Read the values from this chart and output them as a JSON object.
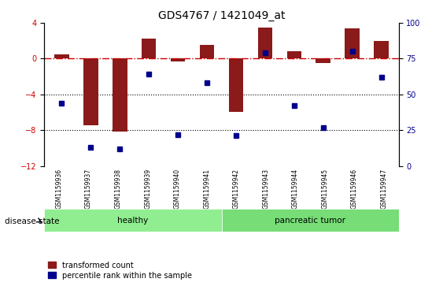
{
  "title": "GDS4767 / 1421049_at",
  "samples": [
    "GSM1159936",
    "GSM1159937",
    "GSM1159938",
    "GSM1159939",
    "GSM1159940",
    "GSM1159941",
    "GSM1159942",
    "GSM1159943",
    "GSM1159944",
    "GSM1159945",
    "GSM1159946",
    "GSM1159947"
  ],
  "transformed_count": [
    0.5,
    -7.5,
    -8.2,
    2.2,
    -0.3,
    1.5,
    -6.0,
    3.5,
    0.8,
    -0.5,
    3.4,
    2.0
  ],
  "percentile_rank": [
    44,
    13,
    12,
    64,
    22,
    58,
    21,
    79,
    42,
    27,
    80,
    62
  ],
  "groups": [
    {
      "label": "healthy",
      "start": 0,
      "end": 6,
      "color": "#90EE90"
    },
    {
      "label": "pancreatic tumor",
      "start": 6,
      "end": 12,
      "color": "#90EE90"
    }
  ],
  "group_boundary": 6,
  "bar_color": "#8B1A1A",
  "dot_color": "#00008B",
  "zero_line_color": "#CC0000",
  "grid_line_color": "#000000",
  "ylim_left": [
    -12,
    4
  ],
  "ylim_right": [
    0,
    100
  ],
  "yticks_left": [
    4,
    0,
    -4,
    -8,
    -12
  ],
  "yticks_right": [
    100,
    75,
    50,
    25,
    0
  ],
  "hlines": [
    0,
    -4,
    -8
  ],
  "disease_state_label": "disease state",
  "legend_items": [
    "transformed count",
    "percentile rank within the sample"
  ],
  "bar_width": 0.5,
  "background_color": "#ffffff",
  "plot_bg_color": "#ffffff",
  "label_box_color": "#d3d3d3"
}
